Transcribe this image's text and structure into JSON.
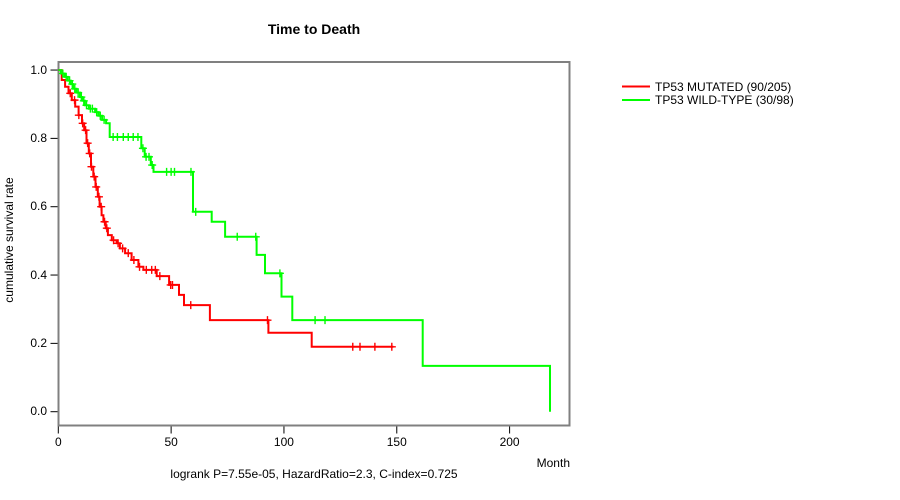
{
  "title": "Time to Death",
  "footer": "logrank P=7.55e-05, HazardRatio=2.3, C-index=0.725",
  "x_axis": {
    "label": "Month",
    "ticks": [
      "0",
      "50",
      "100",
      "150",
      "200"
    ]
  },
  "y_axis": {
    "label": "cumulative survival rate",
    "ticks": [
      "1.0",
      "0.8",
      "0.6",
      "0.4",
      "0.2",
      "0.0"
    ]
  },
  "legend": [
    {
      "label": "TP53 MUTATED (90/205)",
      "color": "#ff0000"
    },
    {
      "label": "TP53 WILD-TYPE (30/98)",
      "color": "#00ff00"
    }
  ],
  "colors": {
    "box": "#808080",
    "axis": "#000000",
    "red_series": "#ff0000",
    "green_series": "#00ff00"
  },
  "chart_data": {
    "type": "line",
    "subtype": "kaplan-meier-step",
    "title": "Time to Death",
    "xlabel": "Month",
    "ylabel": "cumulative survival rate",
    "xlim": [
      0,
      226
    ],
    "ylim": [
      0.0,
      1.0
    ],
    "grid": false,
    "legend_position": "right-outside",
    "annotation": "logrank P=7.55e-05, HazardRatio=2.3, C-index=0.725",
    "series": [
      {
        "name": "TP53 MUTATED (90/205)",
        "color": "#ff0000",
        "end_month": 148.5,
        "steps": [
          [
            0,
            1.0
          ],
          [
            1.5,
            0.971
          ],
          [
            3,
            0.951
          ],
          [
            4.5,
            0.932
          ],
          [
            6,
            0.912
          ],
          [
            7.5,
            0.893
          ],
          [
            9,
            0.868
          ],
          [
            10.5,
            0.844
          ],
          [
            11.5,
            0.824
          ],
          [
            12.5,
            0.786
          ],
          [
            13.5,
            0.756
          ],
          [
            14.5,
            0.717
          ],
          [
            15.5,
            0.688
          ],
          [
            16.5,
            0.658
          ],
          [
            17.5,
            0.629
          ],
          [
            18.3,
            0.6
          ],
          [
            19.2,
            0.575
          ],
          [
            20,
            0.556
          ],
          [
            21,
            0.537
          ],
          [
            22,
            0.517
          ],
          [
            23.7,
            0.502
          ],
          [
            25.9,
            0.493
          ],
          [
            27.3,
            0.478
          ],
          [
            29.6,
            0.464
          ],
          [
            32.5,
            0.444
          ],
          [
            35.5,
            0.424
          ],
          [
            37.7,
            0.415
          ],
          [
            43.6,
            0.397
          ],
          [
            49.1,
            0.371
          ],
          [
            53.5,
            0.342
          ],
          [
            55.7,
            0.312
          ],
          [
            67.2,
            0.268
          ],
          [
            93.1,
            0.231
          ],
          [
            112.3,
            0.19
          ]
        ],
        "censor_months": [
          5.3,
          7.2,
          9.1,
          10.8,
          12.1,
          13.0,
          13.9,
          14.7,
          15.9,
          16.8,
          18.0,
          19.0,
          20.5,
          21.5,
          24.5,
          26.5,
          28.5,
          31,
          33.5,
          36,
          39,
          41.4,
          43.0,
          45,
          49.8,
          50.6,
          58.7,
          92.7,
          130.5,
          133.7,
          140.3,
          147.8
        ]
      },
      {
        "name": "TP53 WILD-TYPE (30/98)",
        "color": "#00ff00",
        "end_month": 217.9,
        "steps": [
          [
            0,
            1.0
          ],
          [
            1.2,
            0.99
          ],
          [
            2.8,
            0.98
          ],
          [
            4.2,
            0.969
          ],
          [
            5.5,
            0.959
          ],
          [
            6.6,
            0.945
          ],
          [
            8,
            0.934
          ],
          [
            9.6,
            0.921
          ],
          [
            10.7,
            0.91
          ],
          [
            11.8,
            0.897
          ],
          [
            13.5,
            0.887
          ],
          [
            16.3,
            0.877
          ],
          [
            17.8,
            0.866
          ],
          [
            19.4,
            0.854
          ],
          [
            21.2,
            0.844
          ],
          [
            22.8,
            0.804
          ],
          [
            36.8,
            0.771
          ],
          [
            38.3,
            0.746
          ],
          [
            41,
            0.722
          ],
          [
            42.2,
            0.702
          ],
          [
            59.7,
            0.585
          ],
          [
            68,
            0.556
          ],
          [
            73.9,
            0.512
          ],
          [
            87.9,
            0.459
          ],
          [
            91.6,
            0.405
          ],
          [
            98.9,
            0.337
          ],
          [
            103.7,
            0.268
          ],
          [
            161.5,
            0.134
          ],
          [
            217.9,
            0.0
          ]
        ],
        "censor_months": [
          2.0,
          3.5,
          5.0,
          6.2,
          7.3,
          8.8,
          10.2,
          11.3,
          12.5,
          14.2,
          15.1,
          17.0,
          18.6,
          20.3,
          24.3,
          26.2,
          28.8,
          31,
          33.2,
          35.3,
          37.5,
          38.9,
          40.2,
          41.6,
          48,
          50,
          51.5,
          58.8,
          60.9,
          79.3,
          87.5,
          98.2,
          113.8,
          118.2
        ]
      }
    ]
  }
}
